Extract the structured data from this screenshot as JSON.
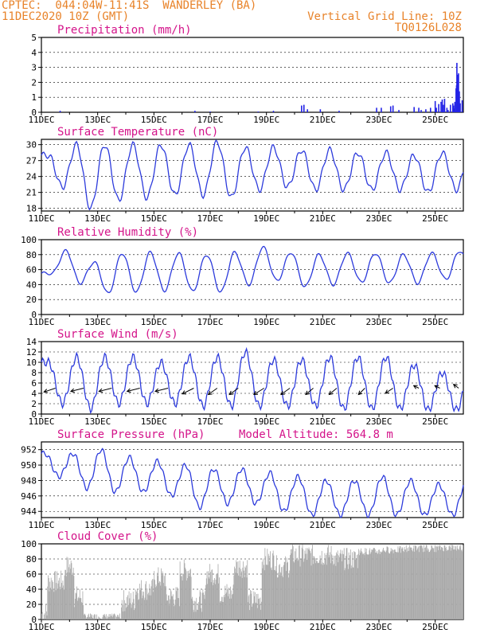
{
  "header": {
    "station": "CPTEC:  044:04W-11:41S  WANDERLEY (BA)",
    "date": "11DEC2020 10Z (GMT)",
    "grid_line": "Vertical Grid Line: 10Z",
    "code": "TQ0126L028"
  },
  "colors": {
    "title": "#d4148a",
    "header": "#e8832a",
    "line": "#2d3bdc",
    "bar": "#2323e6",
    "cloud": "#a8a8a8",
    "axis": "#000000"
  },
  "chart_data": [
    {
      "type": "bar",
      "title": "Precipitation (mm/h)",
      "x_labels": [
        "11DEC",
        "13DEC",
        "15DEC",
        "17DEC",
        "19DEC",
        "21DEC",
        "23DEC",
        "25DEC"
      ],
      "x_range_hours": [
        0,
        360
      ],
      "ylim": [
        0,
        5
      ],
      "yticks": [
        0,
        1,
        2,
        3,
        4,
        5
      ],
      "grid": "dashed",
      "bars": [
        {
          "h": 16,
          "v": 0.1
        },
        {
          "h": 131,
          "v": 0.1
        },
        {
          "h": 144,
          "v": 0.05
        },
        {
          "h": 185,
          "v": 0.05
        },
        {
          "h": 198,
          "v": 0.1
        },
        {
          "h": 222,
          "v": 0.45
        },
        {
          "h": 224,
          "v": 0.5
        },
        {
          "h": 227,
          "v": 0.2
        },
        {
          "h": 238,
          "v": 0.2
        },
        {
          "h": 254,
          "v": 0.1
        },
        {
          "h": 286,
          "v": 0.3
        },
        {
          "h": 290,
          "v": 0.3
        },
        {
          "h": 298,
          "v": 0.4
        },
        {
          "h": 300,
          "v": 0.45
        },
        {
          "h": 305,
          "v": 0.15
        },
        {
          "h": 318,
          "v": 0.35
        },
        {
          "h": 322,
          "v": 0.3
        },
        {
          "h": 324,
          "v": 0.15
        },
        {
          "h": 328,
          "v": 0.2
        },
        {
          "h": 332,
          "v": 0.3
        },
        {
          "h": 336,
          "v": 0.75
        },
        {
          "h": 337,
          "v": 0.3
        },
        {
          "h": 341,
          "v": 0.7
        },
        {
          "h": 342,
          "v": 0.85
        },
        {
          "h": 343,
          "v": 0.5
        },
        {
          "h": 344,
          "v": 0.9
        },
        {
          "h": 346,
          "v": 0.3
        },
        {
          "h": 349,
          "v": 0.5
        },
        {
          "h": 351,
          "v": 0.6
        },
        {
          "h": 352,
          "v": 0.25
        },
        {
          "h": 357,
          "v": 0.15
        }
      ],
      "bars_tail": [
        {
          "h": 339,
          "v": 0.55
        },
        {
          "h": 347,
          "v": 0.15
        },
        {
          "h": 351.6,
          "v": 0.45
        },
        {
          "h": 353,
          "v": 0.1
        },
        {
          "h": 359,
          "v": 0.8
        }
      ],
      "bars_peak": [
        {
          "h": 354.5,
          "v": 3.3
        },
        {
          "h": 355.2,
          "v": 2.5
        },
        {
          "h": 355.9,
          "v": 2.6
        },
        {
          "h": 353.8,
          "v": 1.6
        },
        {
          "h": 356.6,
          "v": 1.4
        },
        {
          "h": 357.3,
          "v": 0.6
        },
        {
          "h": 352.8,
          "v": 0.7
        },
        {
          "h": 354.2,
          "v": 1.8
        },
        {
          "h": 356.2,
          "v": 0.9
        }
      ]
    },
    {
      "type": "line",
      "title": "Surface Temperature (nC)",
      "x_labels": [
        "11DEC",
        "13DEC",
        "15DEC",
        "17DEC",
        "19DEC",
        "21DEC",
        "23DEC",
        "25DEC"
      ],
      "ylim": [
        17.5,
        31
      ],
      "yticks": [
        18,
        21,
        24,
        27,
        30
      ],
      "min_hour": 19,
      "days": [
        {
          "min": 22.0,
          "max": 28.0
        },
        {
          "min": 18.0,
          "max": 30.0
        },
        {
          "min": 19.5,
          "max": 30.0
        },
        {
          "min": 20.0,
          "max": 30.0
        },
        {
          "min": 20.5,
          "max": 30.0
        },
        {
          "min": 20.5,
          "max": 30.0
        },
        {
          "min": 20.0,
          "max": 30.5
        },
        {
          "min": 21.5,
          "max": 29.5
        },
        {
          "min": 22.0,
          "max": 29.5
        },
        {
          "min": 21.5,
          "max": 29.0
        },
        {
          "min": 21.5,
          "max": 29.0
        },
        {
          "min": 21.5,
          "max": 28.5
        },
        {
          "min": 21.5,
          "max": 28.5
        },
        {
          "min": 21.0,
          "max": 28.0
        },
        {
          "min": 21.5,
          "max": 28.5
        },
        {
          "min": 21.5,
          "max": 28.5
        }
      ]
    },
    {
      "type": "line",
      "title": "Relative Humidity (%)",
      "x_labels": [
        "11DEC",
        "13DEC",
        "15DEC",
        "17DEC",
        "19DEC",
        "21DEC",
        "23DEC",
        "25DEC"
      ],
      "ylim": [
        0,
        100
      ],
      "yticks": [
        0,
        20,
        40,
        60,
        80,
        100
      ],
      "max_hour": 19,
      "days": [
        {
          "min": 55,
          "max": 85
        },
        {
          "min": 42,
          "max": 70
        },
        {
          "min": 28,
          "max": 82
        },
        {
          "min": 30,
          "max": 83
        },
        {
          "min": 32,
          "max": 82
        },
        {
          "min": 31,
          "max": 80
        },
        {
          "min": 30,
          "max": 83
        },
        {
          "min": 40,
          "max": 90
        },
        {
          "min": 45,
          "max": 83
        },
        {
          "min": 37,
          "max": 80
        },
        {
          "min": 40,
          "max": 82
        },
        {
          "min": 43,
          "max": 82
        },
        {
          "min": 42,
          "max": 80
        },
        {
          "min": 42,
          "max": 82
        },
        {
          "min": 47,
          "max": 85
        },
        {
          "min": 48,
          "max": 90
        }
      ]
    },
    {
      "type": "line",
      "title": "Surface Wind (m/s)",
      "x_labels": [
        "11DEC",
        "13DEC",
        "15DEC",
        "17DEC",
        "19DEC",
        "21DEC",
        "23DEC",
        "25DEC"
      ],
      "ylim": [
        0,
        14
      ],
      "yticks": [
        0,
        2,
        4,
        6,
        8,
        10,
        12,
        14
      ],
      "peak_hour": 16,
      "days": [
        {
          "min": 2,
          "max": 10
        },
        {
          "min": 1,
          "max": 11
        },
        {
          "min": 2,
          "max": 11
        },
        {
          "min": 2,
          "max": 11
        },
        {
          "min": 2,
          "max": 10
        },
        {
          "min": 1.5,
          "max": 11
        },
        {
          "min": 1.5,
          "max": 11
        },
        {
          "min": 1.5,
          "max": 12
        },
        {
          "min": 1.5,
          "max": 10.5
        },
        {
          "min": 1.5,
          "max": 10.5
        },
        {
          "min": 1,
          "max": 11
        },
        {
          "min": 1,
          "max": 11
        },
        {
          "min": 1,
          "max": 11
        },
        {
          "min": 0.8,
          "max": 9.5
        },
        {
          "min": 0.8,
          "max": 8
        },
        {
          "min": 0.8,
          "max": 8
        }
      ],
      "arrows": [
        {
          "h": 12,
          "u": -9,
          "v": -3
        },
        {
          "h": 36,
          "u": -10,
          "v": -2.5
        },
        {
          "h": 60,
          "u": -10,
          "v": -2.5
        },
        {
          "h": 84,
          "u": -10,
          "v": -2.5
        },
        {
          "h": 108,
          "u": -10,
          "v": -2.5
        },
        {
          "h": 130,
          "u": -9,
          "v": -4.5
        },
        {
          "h": 150,
          "u": -7,
          "v": -5
        },
        {
          "h": 168,
          "u": -7,
          "v": -5
        },
        {
          "h": 190,
          "u": -8,
          "v": -5
        },
        {
          "h": 212,
          "u": -7,
          "v": -5
        },
        {
          "h": 232,
          "u": -6,
          "v": -5
        },
        {
          "h": 252,
          "u": -6,
          "v": -5
        },
        {
          "h": 276,
          "u": -5,
          "v": -5
        },
        {
          "h": 300,
          "u": -6,
          "v": -4
        },
        {
          "h": 322,
          "u": -4,
          "v": 2
        },
        {
          "h": 340,
          "u": -4,
          "v": 2
        },
        {
          "h": 356,
          "u": -4,
          "v": 3
        }
      ]
    },
    {
      "type": "line",
      "title": "Surface Pressure (hPa)",
      "annotation": "Model Altitude: 564.8  m",
      "x_labels": [
        "11DEC",
        "13DEC",
        "15DEC",
        "17DEC",
        "19DEC",
        "21DEC",
        "23DEC",
        "25DEC"
      ],
      "ylim": [
        943.2,
        953
      ],
      "yticks": [
        944,
        946,
        948,
        950,
        952
      ],
      "peak_hour": 12,
      "days": [
        {
          "min": 948.5,
          "max": 951.5
        },
        {
          "min": 947.0,
          "max": 951.5
        },
        {
          "min": 946.5,
          "max": 952.0
        },
        {
          "min": 946.5,
          "max": 951.0
        },
        {
          "min": 946.0,
          "max": 950.5
        },
        {
          "min": 944.5,
          "max": 950.0
        },
        {
          "min": 945.0,
          "max": 949.5
        },
        {
          "min": 945.0,
          "max": 949.5
        },
        {
          "min": 944.0,
          "max": 949.0
        },
        {
          "min": 943.5,
          "max": 948.5
        },
        {
          "min": 943.5,
          "max": 948.0
        },
        {
          "min": 943.5,
          "max": 948.0
        },
        {
          "min": 943.5,
          "max": 948.5
        },
        {
          "min": 943.5,
          "max": 948.0
        },
        {
          "min": 943.5,
          "max": 947.5
        },
        {
          "min": 943.5,
          "max": 948.0
        }
      ]
    },
    {
      "type": "area",
      "title": "Cloud Cover (%)",
      "x_labels": [
        "11DEC",
        "13DEC",
        "15DEC",
        "17DEC",
        "19DEC",
        "21DEC",
        "23DEC",
        "25DEC"
      ],
      "ylim": [
        0,
        100
      ],
      "yticks": [
        0,
        20,
        40,
        60,
        80,
        100
      ],
      "segments": [
        {
          "from": 0,
          "to": 5,
          "base": 8
        },
        {
          "from": 5,
          "to": 20,
          "base": 50
        },
        {
          "from": 20,
          "to": 28,
          "base": 70
        },
        {
          "from": 28,
          "to": 36,
          "base": 30
        },
        {
          "from": 36,
          "to": 44,
          "base": 5
        },
        {
          "from": 44,
          "to": 56,
          "base": 3
        },
        {
          "from": 56,
          "to": 68,
          "base": 2
        },
        {
          "from": 68,
          "to": 80,
          "base": 25
        },
        {
          "from": 80,
          "to": 96,
          "base": 40
        },
        {
          "from": 96,
          "to": 106,
          "base": 55
        },
        {
          "from": 106,
          "to": 118,
          "base": 30
        },
        {
          "from": 118,
          "to": 128,
          "base": 65
        },
        {
          "from": 128,
          "to": 140,
          "base": 25
        },
        {
          "from": 140,
          "to": 152,
          "base": 60
        },
        {
          "from": 152,
          "to": 164,
          "base": 35
        },
        {
          "from": 164,
          "to": 176,
          "base": 70
        },
        {
          "from": 176,
          "to": 188,
          "base": 25
        },
        {
          "from": 188,
          "to": 200,
          "base": 80
        },
        {
          "from": 200,
          "to": 212,
          "base": 70
        },
        {
          "from": 212,
          "to": 230,
          "base": 85
        },
        {
          "from": 230,
          "to": 250,
          "base": 85
        },
        {
          "from": 250,
          "to": 270,
          "base": 80
        },
        {
          "from": 270,
          "to": 290,
          "base": 90
        },
        {
          "from": 290,
          "to": 310,
          "base": 92
        },
        {
          "from": 310,
          "to": 340,
          "base": 94
        },
        {
          "from": 340,
          "to": 360,
          "base": 95
        }
      ]
    }
  ]
}
